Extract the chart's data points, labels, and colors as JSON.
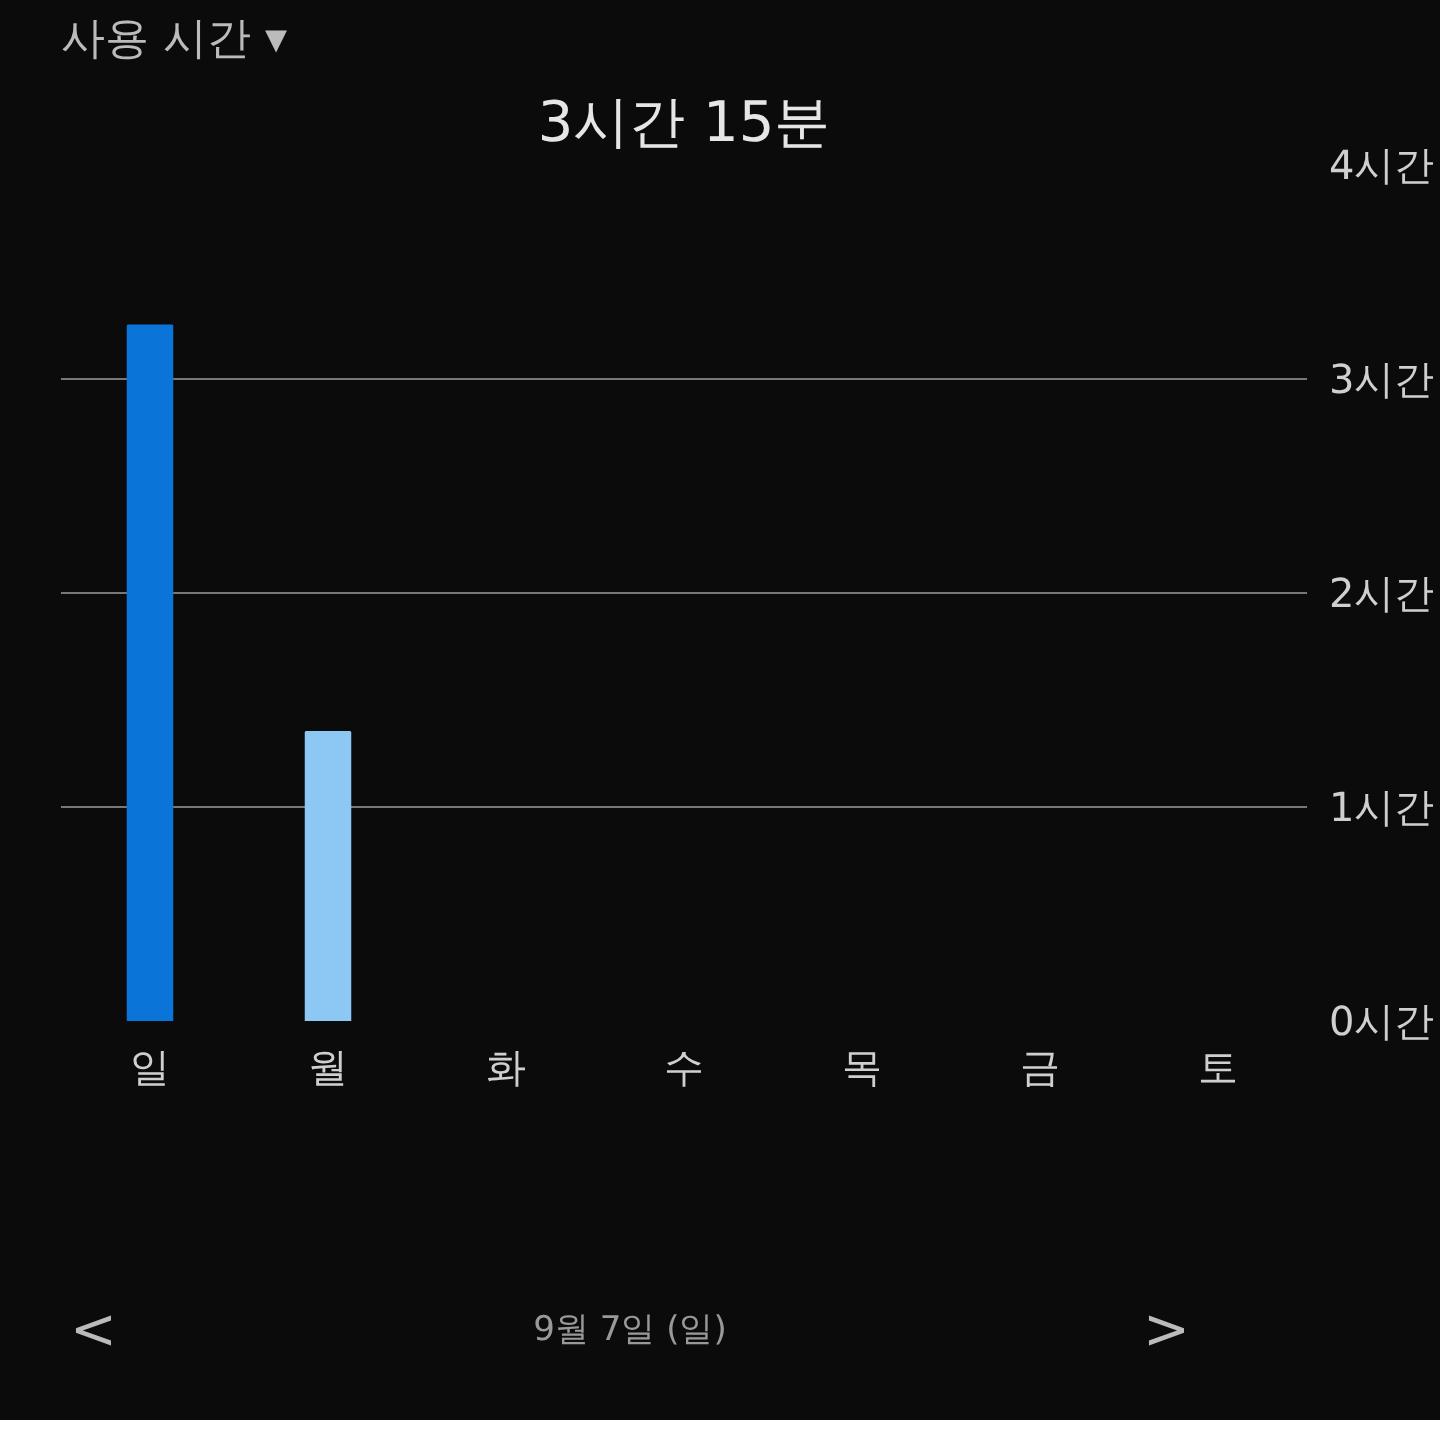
{
  "chart_data": {
    "type": "bar",
    "title": "3시간 15분",
    "subtitle": "사용 시간 ▾",
    "categories": [
      "일",
      "월",
      "화",
      "수",
      "목",
      "금",
      "토"
    ],
    "values": [
      3.25,
      1.35,
      null,
      null,
      null,
      null,
      null
    ],
    "colors": [
      "#0a74d9",
      "#8dc8f5",
      null,
      null,
      null,
      null,
      null
    ],
    "ylim": [
      0,
      4
    ],
    "yticks": [
      {
        "value": 0,
        "label": "0시간"
      },
      {
        "value": 1,
        "label": "1시간"
      },
      {
        "value": 2,
        "label": "2시간"
      },
      {
        "value": 3,
        "label": "3시간"
      },
      {
        "value": 4,
        "label": "4시간"
      }
    ],
    "grid": "y",
    "annotations": [
      "<",
      "9월 7일 (일)",
      ">"
    ]
  }
}
